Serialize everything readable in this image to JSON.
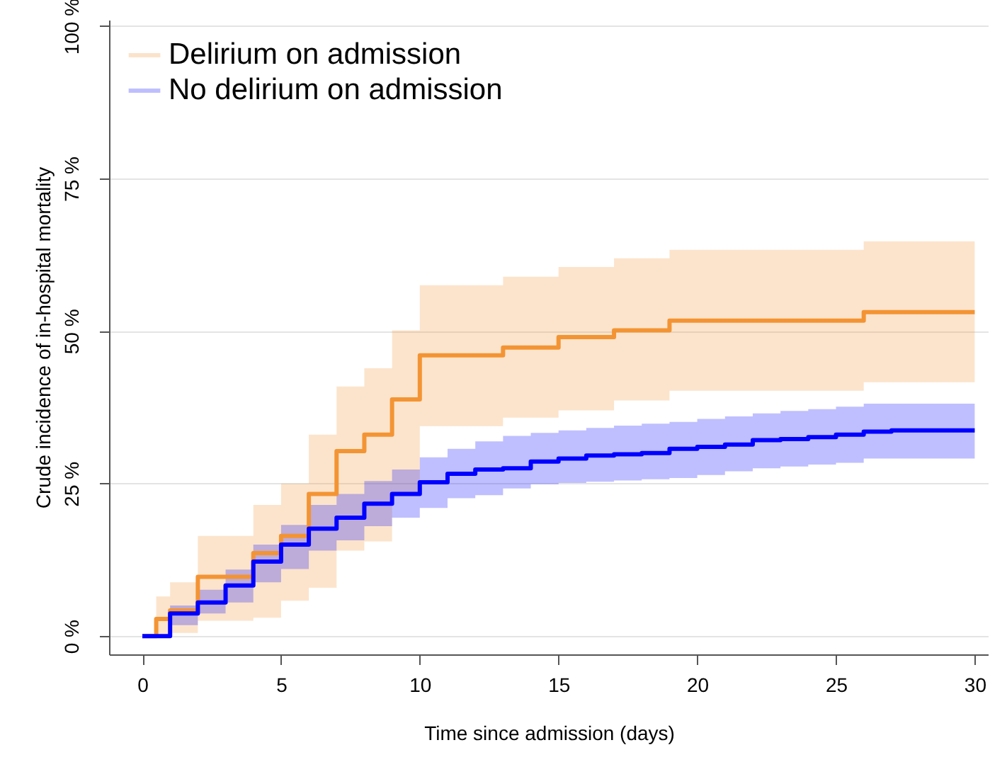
{
  "chart_data": {
    "type": "step",
    "xlabel": "Time since admission (days)",
    "ylabel": "Crude incidence of in-hospital mortality",
    "series": [
      {
        "name": "Delirium on admission",
        "color": "#f39434",
        "x": [
          0,
          0.5,
          1,
          2,
          4,
          5,
          6,
          7,
          8,
          9,
          10,
          13,
          15,
          17,
          19,
          26,
          30
        ],
        "values": [
          0,
          2.8,
          4.2,
          9.7,
          13.6,
          16.4,
          23.3,
          30.3,
          33,
          38.8,
          46,
          47.3,
          49,
          50.1,
          51.7,
          53.1,
          53.1
        ],
        "lower": [
          null,
          0,
          0.5,
          2.5,
          3,
          5.8,
          7.9,
          14,
          15.5,
          23.3,
          34.4,
          35.8,
          37,
          38.6,
          40.2,
          41.6,
          41.6
        ],
        "upper": [
          null,
          6.5,
          8.8,
          16.4,
          21.5,
          25,
          33,
          40.9,
          43.9,
          50.1,
          57.5,
          58.9,
          60.5,
          61.9,
          63.3,
          64.7,
          64.7
        ]
      },
      {
        "name": "No delirium on admission",
        "color": "#0000ff",
        "x": [
          0,
          1,
          2,
          3,
          4,
          5,
          6,
          7,
          8,
          9,
          10,
          11,
          12,
          13,
          14,
          15,
          16,
          17,
          18,
          19,
          20,
          21,
          22,
          23,
          24,
          25,
          26,
          27,
          30
        ],
        "values": [
          0,
          3.7,
          5.5,
          8.3,
          12.2,
          15,
          17.6,
          19.4,
          21.7,
          23.3,
          25.2,
          26.6,
          27.3,
          27.5,
          28.6,
          29.1,
          29.6,
          29.8,
          30,
          30.7,
          31,
          31.4,
          32.1,
          32.3,
          32.6,
          33,
          33.5,
          33.7,
          33.7
        ],
        "lower": [
          null,
          1.8,
          3.7,
          5.5,
          8.8,
          11,
          14,
          15.7,
          18,
          19.4,
          21,
          22.6,
          23.1,
          24.2,
          24.9,
          25.1,
          25.3,
          25.5,
          25.7,
          25.9,
          26.4,
          27,
          27.5,
          27.8,
          28.1,
          28.4,
          29.1,
          29.1,
          29.1
        ],
        "upper": [
          null,
          5,
          7.6,
          10.9,
          15,
          18.2,
          21.5,
          23.3,
          25.4,
          27.3,
          29.3,
          30.7,
          31.9,
          32.8,
          33.3,
          33.7,
          34.1,
          34.5,
          34.8,
          35.1,
          35.6,
          36,
          36.5,
          36.9,
          37.2,
          37.6,
          38.1,
          38.1,
          38.1
        ]
      }
    ],
    "xlim": [
      -1.2,
      30.5
    ],
    "ylim": [
      -3,
      101
    ],
    "xticks": [
      0,
      5,
      10,
      15,
      20,
      25,
      30
    ],
    "yticks": [
      {
        "value": 0,
        "label": "0 %"
      },
      {
        "value": 25,
        "label": "25 %"
      },
      {
        "value": 50,
        "label": "50 %"
      },
      {
        "value": 75,
        "label": "75 %"
      },
      {
        "value": 100,
        "label": "100 %"
      }
    ],
    "grid": "y",
    "legend": "top left"
  }
}
